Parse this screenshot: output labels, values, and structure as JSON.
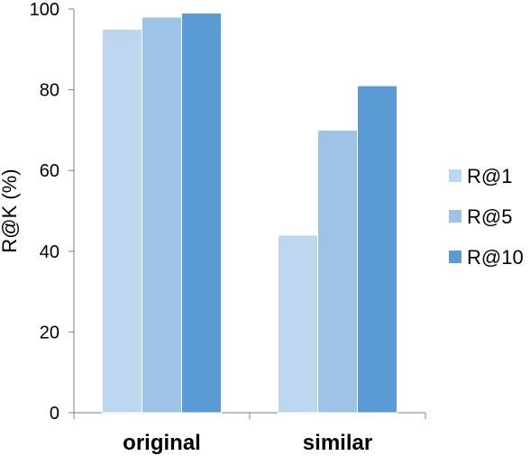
{
  "chart_data": {
    "type": "bar",
    "categories": [
      "original",
      "similar"
    ],
    "series": [
      {
        "name": "R@1",
        "values": [
          95,
          44
        ],
        "color": "#bdd7ee"
      },
      {
        "name": "R@5",
        "values": [
          98,
          70
        ],
        "color": "#9dc3e6"
      },
      {
        "name": "R@10",
        "values": [
          99,
          81
        ],
        "color": "#5b9bd5"
      }
    ],
    "ylabel": "R@K (%)",
    "xlabel": "",
    "ylim": [
      0,
      100
    ],
    "yticks": [
      0,
      20,
      40,
      60,
      80,
      100
    ],
    "grid": false,
    "legend_position": "right"
  }
}
